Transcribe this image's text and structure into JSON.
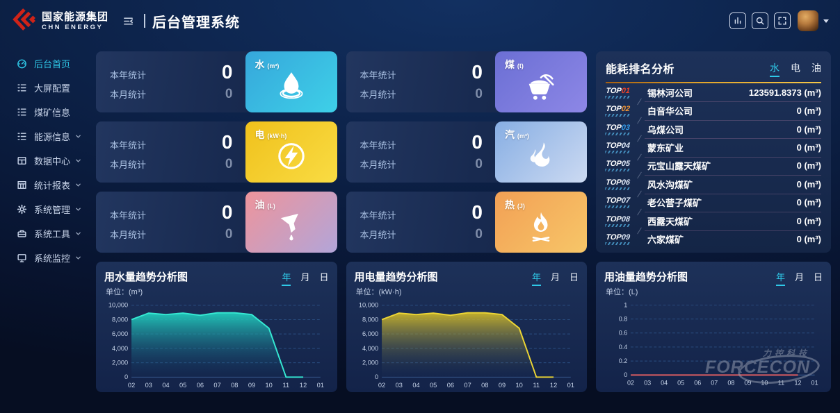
{
  "theme": {
    "accent": "#2fc9e8",
    "card_bg": "#1b2d52",
    "header_line": [
      "#a55e10",
      "#f5c748"
    ]
  },
  "topbar": {
    "brand": {
      "name": "国家能源集团",
      "subtitle": "CHN ENERGY"
    },
    "title": "后台管理系统",
    "actions": [
      {
        "icon": "bar-chart-icon"
      },
      {
        "icon": "search-icon"
      },
      {
        "icon": "fullscreen-icon"
      }
    ]
  },
  "sidebar": {
    "items": [
      {
        "id": "home",
        "label": "后台首页",
        "icon": "dashboard-icon",
        "active": true,
        "has_children": false
      },
      {
        "id": "screen-config",
        "label": "大屏配置",
        "icon": "list-icon",
        "active": false,
        "has_children": false
      },
      {
        "id": "coal-info",
        "label": "煤矿信息",
        "icon": "list-icon",
        "active": false,
        "has_children": false
      },
      {
        "id": "energy-info",
        "label": "能源信息",
        "icon": "list-icon",
        "active": false,
        "has_children": true
      },
      {
        "id": "data-center",
        "label": "数据中心",
        "icon": "database-icon",
        "active": false,
        "has_children": true
      },
      {
        "id": "stats-report",
        "label": "统计报表",
        "icon": "table-icon",
        "active": false,
        "has_children": true
      },
      {
        "id": "system-manage",
        "label": "系统管理",
        "icon": "gear-icon",
        "active": false,
        "has_children": true
      },
      {
        "id": "system-tools",
        "label": "系统工具",
        "icon": "toolbox-icon",
        "active": false,
        "has_children": true
      },
      {
        "id": "system-monitor",
        "label": "系统监控",
        "icon": "monitor-icon",
        "active": false,
        "has_children": true
      }
    ]
  },
  "stat_cards": [
    {
      "id": "water",
      "year_label": "本年统计",
      "year_value": "0",
      "month_label": "本月统计",
      "month_value": "0",
      "name": "水",
      "unit": "(m³)",
      "icon": "water-icon",
      "gradient": [
        "#36a7db",
        "#3ed0e8"
      ]
    },
    {
      "id": "coal",
      "year_label": "本年统计",
      "year_value": "0",
      "month_label": "本月统计",
      "month_value": "0",
      "name": "煤",
      "unit": "(t)",
      "icon": "coal-cart-icon",
      "gradient": [
        "#6b6fd4",
        "#8d87e6"
      ]
    },
    {
      "id": "electricity",
      "year_label": "本年统计",
      "year_value": "0",
      "month_label": "本月统计",
      "month_value": "0",
      "name": "电",
      "unit": "(kW·h)",
      "icon": "lightning-icon",
      "gradient": [
        "#f0c11c",
        "#f9dc43"
      ]
    },
    {
      "id": "steam",
      "year_label": "本年统计",
      "year_value": "0",
      "month_label": "本月统计",
      "month_value": "0",
      "name": "汽",
      "unit": "(m³)",
      "icon": "steam-icon",
      "gradient": [
        "#87aee3",
        "#ccdaf2"
      ]
    },
    {
      "id": "oil",
      "year_label": "本年统计",
      "year_value": "0",
      "month_label": "本月统计",
      "month_value": "0",
      "name": "油",
      "unit": "(L)",
      "icon": "oil-funnel-icon",
      "gradient": [
        "#ee949b",
        "#b2a5d9"
      ]
    },
    {
      "id": "heat",
      "year_label": "本年统计",
      "year_value": "0",
      "month_label": "本月统计",
      "month_value": "0",
      "name": "热",
      "unit": "(J)",
      "icon": "fire-icon",
      "gradient": [
        "#f2a055",
        "#f7c668"
      ]
    }
  ],
  "ranking": {
    "title": "能耗排名分析",
    "tabs": [
      {
        "label": "水",
        "active": true
      },
      {
        "label": "电",
        "active": false
      },
      {
        "label": "油",
        "active": false
      }
    ],
    "rows": [
      {
        "rank_prefix": "TOP",
        "rank_num": "01",
        "num_color": "#e8432b",
        "name": "锡林河公司",
        "value": "123591.8373 (m³)"
      },
      {
        "rank_prefix": "TOP",
        "rank_num": "02",
        "num_color": "#ef9334",
        "name": "白音华公司",
        "value": "0 (m³)"
      },
      {
        "rank_prefix": "TOP",
        "rank_num": "03",
        "num_color": "#3399e6",
        "name": "乌煤公司",
        "value": "0 (m³)"
      },
      {
        "rank_prefix": "TOP",
        "rank_num": "04",
        "num_color": "#d9e3f2",
        "name": "蒙东矿业",
        "value": "0 (m³)"
      },
      {
        "rank_prefix": "TOP",
        "rank_num": "05",
        "num_color": "#d9e3f2",
        "name": "元宝山露天煤矿",
        "value": "0 (m³)"
      },
      {
        "rank_prefix": "TOP",
        "rank_num": "06",
        "num_color": "#d9e3f2",
        "name": "风水沟煤矿",
        "value": "0 (m³)"
      },
      {
        "rank_prefix": "TOP",
        "rank_num": "07",
        "num_color": "#d9e3f2",
        "name": "老公营子煤矿",
        "value": "0 (m³)"
      },
      {
        "rank_prefix": "TOP",
        "rank_num": "08",
        "num_color": "#d9e3f2",
        "name": "西露天煤矿",
        "value": "0 (m³)"
      },
      {
        "rank_prefix": "TOP",
        "rank_num": "09",
        "num_color": "#d9e3f2",
        "name": "六家煤矿",
        "value": "0 (m³)"
      }
    ]
  },
  "chart_data": [
    {
      "id": "water-trend",
      "type": "area",
      "title": "用水量趋势分析图",
      "unit_label": "单位：(m³)",
      "tabs": [
        "年",
        "月",
        "日"
      ],
      "active_tab": "年",
      "categories": [
        "02",
        "03",
        "04",
        "05",
        "06",
        "07",
        "08",
        "09",
        "10",
        "11",
        "12",
        "01"
      ],
      "values": [
        8000,
        8900,
        8700,
        8900,
        8600,
        8950,
        8950,
        8700,
        6800,
        0,
        0,
        null
      ],
      "ylim": [
        0,
        10000
      ],
      "yticks": [
        0,
        2000,
        4000,
        6000,
        8000,
        10000
      ],
      "grid": "dashed",
      "legend": "none",
      "line_color": "#35e8d2",
      "area_from": "rgba(34,204,188,0.95)",
      "area_to": "rgba(20,60,110,0.05)"
    },
    {
      "id": "electricity-trend",
      "type": "area",
      "title": "用电量趋势分析图",
      "unit_label": "单位：(kW·h)",
      "tabs": [
        "年",
        "月",
        "日"
      ],
      "active_tab": "年",
      "categories": [
        "02",
        "03",
        "04",
        "05",
        "06",
        "07",
        "08",
        "09",
        "10",
        "11",
        "12",
        "01"
      ],
      "values": [
        8000,
        8900,
        8700,
        8900,
        8600,
        8950,
        8950,
        8700,
        6800,
        0,
        0,
        null
      ],
      "ylim": [
        0,
        10000
      ],
      "yticks": [
        0,
        2000,
        4000,
        6000,
        8000,
        10000
      ],
      "grid": "dashed",
      "legend": "none",
      "line_color": "#ecd534",
      "area_from": "rgba(212,188,40,0.9)",
      "area_to": "rgba(30,55,95,0.05)"
    },
    {
      "id": "oil-trend",
      "type": "line",
      "title": "用油量趋势分析图",
      "unit_label": "单位：(L)",
      "tabs": [
        "年",
        "月",
        "日"
      ],
      "active_tab": "年",
      "categories": [
        "02",
        "03",
        "04",
        "05",
        "06",
        "07",
        "08",
        "09",
        "10",
        "11",
        "12",
        "01"
      ],
      "values": [
        0,
        0,
        0,
        0,
        0,
        0,
        0,
        0,
        0,
        0,
        0,
        null
      ],
      "ylim": [
        0,
        1
      ],
      "yticks": [
        0,
        0.2,
        0.4,
        0.6,
        0.8,
        1
      ],
      "grid": "dashed",
      "legend": "none",
      "line_color": "#e35f63",
      "area_from": "rgba(0,0,0,0)",
      "area_to": "rgba(0,0,0,0)",
      "watermark": {
        "line1": "力控科技",
        "line2": "FORCECON"
      }
    }
  ]
}
